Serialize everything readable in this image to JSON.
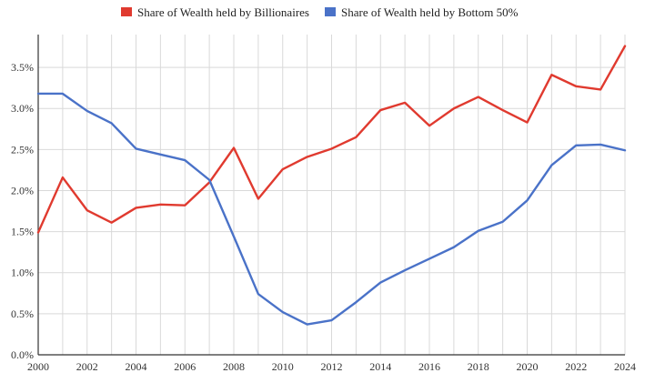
{
  "chart_data": {
    "type": "line",
    "x": [
      2000,
      2001,
      2002,
      2003,
      2004,
      2005,
      2006,
      2007,
      2008,
      2009,
      2010,
      2011,
      2012,
      2013,
      2014,
      2015,
      2016,
      2017,
      2018,
      2019,
      2020,
      2021,
      2022,
      2023,
      2024
    ],
    "series": [
      {
        "name": "Share of Wealth held by Billionaires",
        "color": "#e03a2f",
        "values": [
          1.49,
          2.16,
          1.76,
          1.61,
          1.79,
          1.83,
          1.82,
          2.1,
          2.52,
          1.9,
          2.26,
          2.41,
          2.51,
          2.65,
          2.98,
          3.07,
          2.79,
          3.0,
          3.14,
          2.98,
          2.83,
          3.41,
          3.27,
          3.23,
          3.76
        ]
      },
      {
        "name": "Share of Wealth held by Bottom 50%",
        "color": "#4a72c8",
        "values": [
          3.18,
          3.18,
          2.97,
          2.82,
          2.51,
          2.44,
          2.37,
          2.13,
          1.44,
          0.74,
          0.52,
          0.37,
          0.42,
          0.64,
          0.88,
          1.03,
          1.17,
          1.31,
          1.51,
          1.62,
          1.88,
          2.31,
          2.55,
          2.56,
          2.49
        ]
      }
    ],
    "x_ticks": [
      2000,
      2002,
      2004,
      2006,
      2008,
      2010,
      2012,
      2014,
      2016,
      2018,
      2020,
      2022,
      2024
    ],
    "x_tick_labels": [
      "2000",
      "2002",
      "2004",
      "2006",
      "2008",
      "2010",
      "2012",
      "2014",
      "2016",
      "2018",
      "2020",
      "2022",
      "2024"
    ],
    "y_ticks": [
      0,
      0.5,
      1.0,
      1.5,
      2.0,
      2.5,
      3.0,
      3.5
    ],
    "y_tick_labels": [
      "0.0%",
      "0.5%",
      "1.0%",
      "1.5%",
      "2.0%",
      "2.5%",
      "3.0%",
      "3.5%"
    ],
    "xlim": [
      2000,
      2024
    ],
    "ylim": [
      0,
      3.9
    ],
    "grid": true,
    "legend_position": "top-center",
    "title": "",
    "xlabel": "",
    "ylabel": ""
  }
}
